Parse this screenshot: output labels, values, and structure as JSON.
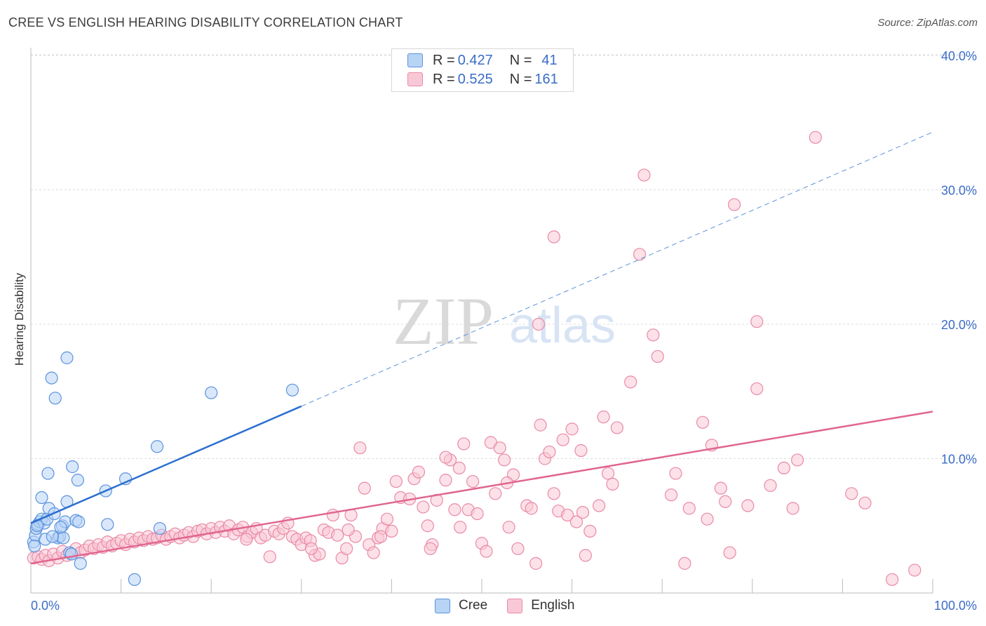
{
  "title": "CREE VS ENGLISH HEARING DISABILITY CORRELATION CHART",
  "source": "Source: ZipAtlas.com",
  "watermark": {
    "zip": "ZIP",
    "atlas": "atlas"
  },
  "legend": {
    "cree": {
      "r_label": "R = ",
      "r": "0.427",
      "n_label": "N = ",
      "n": "41"
    },
    "english": {
      "r_label": "R = ",
      "r": "0.525",
      "n_label": "N = ",
      "n": "161"
    }
  },
  "colors": {
    "cree_fill": "#b8d4f5",
    "cree_stroke": "#5b93dc",
    "cree_line": "#2b6fd0",
    "english_fill": "#f9c8d6",
    "english_stroke": "#e98aa7",
    "english_line": "#e0668f",
    "axis_text": "#3a6cc7",
    "grid": "#dddddd"
  },
  "chart_data": {
    "type": "scatter",
    "title": "CREE VS ENGLISH HEARING DISABILITY CORRELATION CHART",
    "xlabel": "",
    "ylabel": "Hearing Disability",
    "xlim": [
      0,
      100
    ],
    "ylim": [
      0,
      42
    ],
    "x_tick_labels": [
      "0.0%",
      "100.0%"
    ],
    "y_ticks": [
      10,
      20,
      30,
      40
    ],
    "y_tick_labels": [
      "10.0%",
      "20.0%",
      "30.0%",
      "40.0%"
    ],
    "grid": true,
    "legend_placement": "top-center",
    "series": [
      {
        "name": "Cree",
        "r": 0.427,
        "n": 41,
        "trend": {
          "x0": 0,
          "y0": 5.2,
          "x1": 30,
          "y1": 13.9,
          "dashed_to_x": 100,
          "dashed_to_y": 34.3
        },
        "points": [
          [
            0.3,
            3.8
          ],
          [
            0.5,
            4.3
          ],
          [
            0.6,
            4.8
          ],
          [
            0.8,
            5.1
          ],
          [
            1.0,
            5.3
          ],
          [
            1.2,
            5.5
          ],
          [
            1.5,
            5.2
          ],
          [
            1.8,
            5.5
          ],
          [
            1.2,
            7.1
          ],
          [
            1.9,
            8.9
          ],
          [
            2.0,
            6.3
          ],
          [
            2.3,
            16.0
          ],
          [
            2.6,
            5.9
          ],
          [
            2.7,
            14.5
          ],
          [
            3.0,
            4.1
          ],
          [
            3.2,
            4.2
          ],
          [
            3.5,
            5.0
          ],
          [
            3.6,
            4.1
          ],
          [
            3.8,
            5.3
          ],
          [
            4.0,
            6.8
          ],
          [
            4.0,
            17.5
          ],
          [
            4.3,
            3.0
          ],
          [
            4.5,
            2.9
          ],
          [
            4.6,
            9.4
          ],
          [
            5.0,
            5.4
          ],
          [
            5.2,
            8.4
          ],
          [
            5.3,
            5.3
          ],
          [
            5.5,
            2.2
          ],
          [
            8.3,
            7.6
          ],
          [
            8.5,
            5.1
          ],
          [
            10.5,
            8.5
          ],
          [
            11.5,
            1.0
          ],
          [
            14.0,
            10.9
          ],
          [
            14.3,
            4.8
          ],
          [
            20.0,
            14.9
          ],
          [
            29.0,
            15.1
          ],
          [
            0.4,
            3.5
          ],
          [
            1.6,
            4.0
          ],
          [
            0.7,
            5.0
          ],
          [
            2.4,
            4.2
          ],
          [
            3.3,
            4.9
          ]
        ]
      },
      {
        "name": "English",
        "r": 0.525,
        "n": 161,
        "trend": {
          "x0": 0,
          "y0": 2.2,
          "x1": 100,
          "y1": 13.5
        },
        "points": [
          [
            0.3,
            2.6
          ],
          [
            0.8,
            2.7
          ],
          [
            1.2,
            2.5
          ],
          [
            1.6,
            2.8
          ],
          [
            2.0,
            2.4
          ],
          [
            2.5,
            2.9
          ],
          [
            3.0,
            2.6
          ],
          [
            3.5,
            3.1
          ],
          [
            4.0,
            2.8
          ],
          [
            4.5,
            2.9
          ],
          [
            5.0,
            3.3
          ],
          [
            5.5,
            3.0
          ],
          [
            6.0,
            3.2
          ],
          [
            6.5,
            3.5
          ],
          [
            7.0,
            3.3
          ],
          [
            7.5,
            3.6
          ],
          [
            8.0,
            3.4
          ],
          [
            8.5,
            3.8
          ],
          [
            9.0,
            3.5
          ],
          [
            9.5,
            3.7
          ],
          [
            10.0,
            3.9
          ],
          [
            10.5,
            3.6
          ],
          [
            11.0,
            4.0
          ],
          [
            11.5,
            3.8
          ],
          [
            12.0,
            4.1
          ],
          [
            12.5,
            3.9
          ],
          [
            13.0,
            4.2
          ],
          [
            13.5,
            4.0
          ],
          [
            14.0,
            4.1
          ],
          [
            14.5,
            4.3
          ],
          [
            15.0,
            4.0
          ],
          [
            15.5,
            4.2
          ],
          [
            16.0,
            4.4
          ],
          [
            16.5,
            4.1
          ],
          [
            17.0,
            4.3
          ],
          [
            17.5,
            4.5
          ],
          [
            18.0,
            4.2
          ],
          [
            18.5,
            4.6
          ],
          [
            19.0,
            4.7
          ],
          [
            19.5,
            4.4
          ],
          [
            20.0,
            4.8
          ],
          [
            20.5,
            4.5
          ],
          [
            21.0,
            4.9
          ],
          [
            21.5,
            4.6
          ],
          [
            22.0,
            5.0
          ],
          [
            22.5,
            4.4
          ],
          [
            23.0,
            4.7
          ],
          [
            23.5,
            4.9
          ],
          [
            24.0,
            4.2
          ],
          [
            24.5,
            4.5
          ],
          [
            25.0,
            4.8
          ],
          [
            25.5,
            4.1
          ],
          [
            26.0,
            4.3
          ],
          [
            26.5,
            2.7
          ],
          [
            27.0,
            4.6
          ],
          [
            27.5,
            4.4
          ],
          [
            28.0,
            4.8
          ],
          [
            28.5,
            5.2
          ],
          [
            29.0,
            4.2
          ],
          [
            29.5,
            4.0
          ],
          [
            30.0,
            3.6
          ],
          [
            30.5,
            4.1
          ],
          [
            31.0,
            3.9
          ],
          [
            31.5,
            2.8
          ],
          [
            32.0,
            2.9
          ],
          [
            32.5,
            4.7
          ],
          [
            33.0,
            4.5
          ],
          [
            33.5,
            5.8
          ],
          [
            34.0,
            4.3
          ],
          [
            34.5,
            2.6
          ],
          [
            35.0,
            3.3
          ],
          [
            35.5,
            5.8
          ],
          [
            36.0,
            4.2
          ],
          [
            36.5,
            10.8
          ],
          [
            37.0,
            7.8
          ],
          [
            37.5,
            3.6
          ],
          [
            38.0,
            3.0
          ],
          [
            38.5,
            4.1
          ],
          [
            39.0,
            4.8
          ],
          [
            39.5,
            5.5
          ],
          [
            40.0,
            4.6
          ],
          [
            40.5,
            8.3
          ],
          [
            41.0,
            7.1
          ],
          [
            42.0,
            7.0
          ],
          [
            42.5,
            8.5
          ],
          [
            43.0,
            9.0
          ],
          [
            43.5,
            6.4
          ],
          [
            44.0,
            5.0
          ],
          [
            44.5,
            3.6
          ],
          [
            45.0,
            6.9
          ],
          [
            46.0,
            8.4
          ],
          [
            46.5,
            9.9
          ],
          [
            47.0,
            6.2
          ],
          [
            47.5,
            9.3
          ],
          [
            48.0,
            11.1
          ],
          [
            48.5,
            6.2
          ],
          [
            49.0,
            8.3
          ],
          [
            49.5,
            5.9
          ],
          [
            50.0,
            3.7
          ],
          [
            50.5,
            3.1
          ],
          [
            51.0,
            11.2
          ],
          [
            51.5,
            7.4
          ],
          [
            52.0,
            10.8
          ],
          [
            52.5,
            9.9
          ],
          [
            53.0,
            4.9
          ],
          [
            53.5,
            8.8
          ],
          [
            54.0,
            3.3
          ],
          [
            55.0,
            6.5
          ],
          [
            55.5,
            6.3
          ],
          [
            56.0,
            2.2
          ],
          [
            56.5,
            12.5
          ],
          [
            57.0,
            10.0
          ],
          [
            57.5,
            10.5
          ],
          [
            58.0,
            7.4
          ],
          [
            58.5,
            6.1
          ],
          [
            59.0,
            11.4
          ],
          [
            59.5,
            5.8
          ],
          [
            60.0,
            12.2
          ],
          [
            60.5,
            5.3
          ],
          [
            61.0,
            10.6
          ],
          [
            61.5,
            2.8
          ],
          [
            62.0,
            4.6
          ],
          [
            63.0,
            6.5
          ],
          [
            63.5,
            13.1
          ],
          [
            64.0,
            8.9
          ],
          [
            64.5,
            8.1
          ],
          [
            65.0,
            12.3
          ],
          [
            66.5,
            15.7
          ],
          [
            67.5,
            25.2
          ],
          [
            68.0,
            31.1
          ],
          [
            69.0,
            19.2
          ],
          [
            69.5,
            17.6
          ],
          [
            71.0,
            7.3
          ],
          [
            71.5,
            8.9
          ],
          [
            72.5,
            2.2
          ],
          [
            73.0,
            6.3
          ],
          [
            74.5,
            12.7
          ],
          [
            75.0,
            5.5
          ],
          [
            75.5,
            11.0
          ],
          [
            76.5,
            7.8
          ],
          [
            77.0,
            6.8
          ],
          [
            77.5,
            3.0
          ],
          [
            78.0,
            28.9
          ],
          [
            79.5,
            6.5
          ],
          [
            80.5,
            15.2
          ],
          [
            80.5,
            20.2
          ],
          [
            82.0,
            8.0
          ],
          [
            83.5,
            9.3
          ],
          [
            84.5,
            6.3
          ],
          [
            85.0,
            9.9
          ],
          [
            87.0,
            33.9
          ],
          [
            91.0,
            7.4
          ],
          [
            92.5,
            6.7
          ],
          [
            95.5,
            1.0
          ],
          [
            98.0,
            1.7
          ],
          [
            58.0,
            26.5
          ],
          [
            56.3,
            20.0
          ],
          [
            38.8,
            4.2
          ],
          [
            35.2,
            4.7
          ],
          [
            44.3,
            3.3
          ],
          [
            47.6,
            4.9
          ],
          [
            52.8,
            8.2
          ],
          [
            61.2,
            6.0
          ],
          [
            23.9,
            4.0
          ],
          [
            31.1,
            3.3
          ],
          [
            46.0,
            10.1
          ]
        ]
      }
    ]
  }
}
